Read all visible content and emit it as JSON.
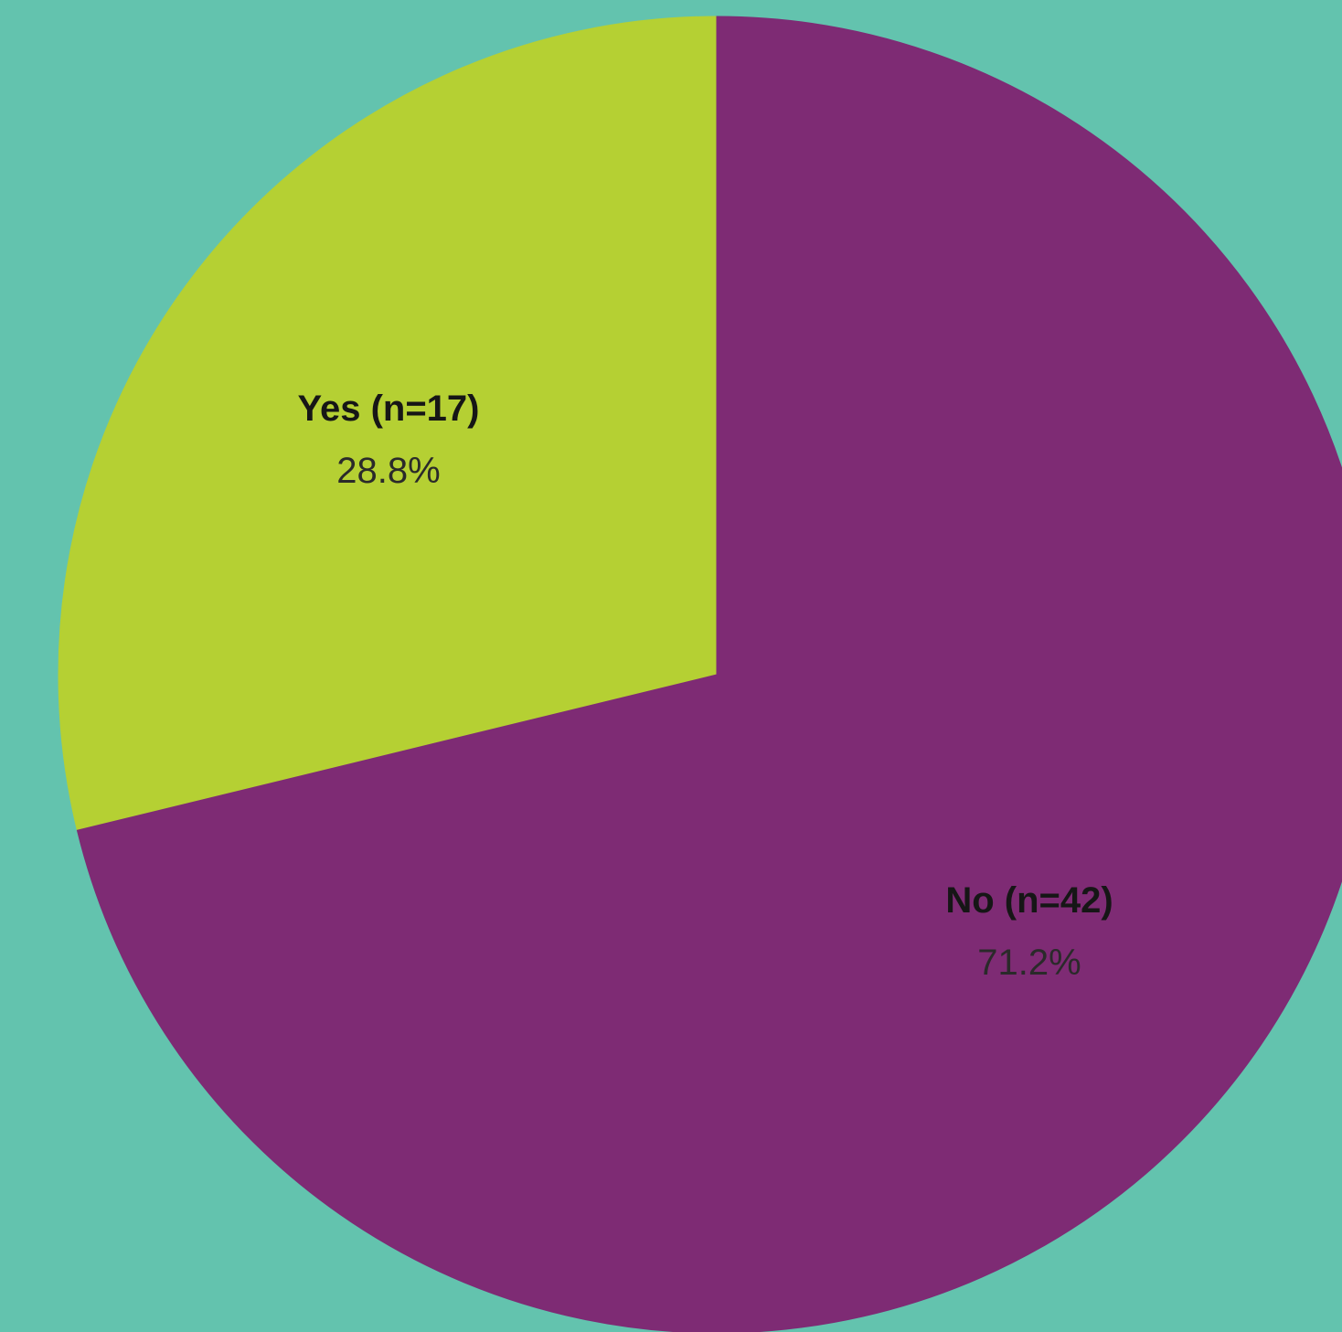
{
  "background_color": "#63c3ae",
  "chart_data": {
    "type": "pie",
    "title": "",
    "start": "12 o'clock",
    "direction": "counterclockwise",
    "slices": [
      {
        "label": "Yes (n=17)",
        "category": "Yes",
        "n": 17,
        "value": 28.8,
        "percent_label": "28.8%",
        "color": "#b5d033"
      },
      {
        "label": "No (n=42)",
        "category": "No",
        "n": 42,
        "value": 71.2,
        "percent_label": "71.2%",
        "color": "#7e2b74"
      }
    ],
    "legend": "none",
    "labels": "inside slices"
  }
}
